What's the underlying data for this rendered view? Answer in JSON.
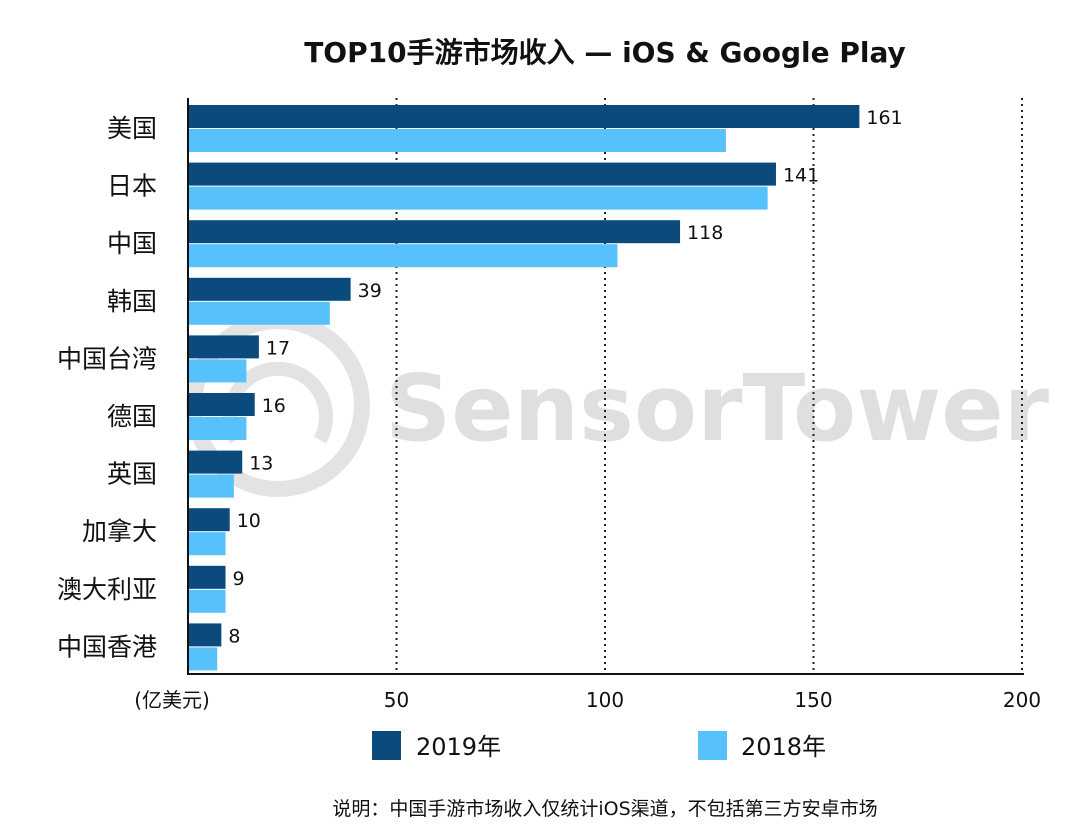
{
  "chart_data": {
    "type": "bar",
    "orientation": "horizontal",
    "title": "TOP10手游市场收入 — iOS & Google Play",
    "unit_label": "(亿美元)",
    "categories": [
      "美国",
      "日本",
      "中国",
      "韩国",
      "中国台湾",
      "德国",
      "英国",
      "加拿大",
      "澳大利亚",
      "中国香港"
    ],
    "series": [
      {
        "name": "2019年",
        "color": "#0b4a7c",
        "values": [
          161,
          141,
          118,
          39,
          17,
          16,
          13,
          10,
          9,
          8
        ],
        "show_labels": true
      },
      {
        "name": "2018年",
        "color": "#56c1fb",
        "values": [
          129,
          139,
          103,
          34,
          14,
          14,
          11,
          9,
          9,
          7
        ],
        "show_labels": false
      }
    ],
    "xlim": [
      0,
      200
    ],
    "xticks": [
      50,
      100,
      150,
      200
    ],
    "grid": "vertical-dotted",
    "legend_position": "bottom",
    "watermark": "SensorTower",
    "note": "说明：中国手游市场收入仅统计iOS渠道，不包括第三方安卓市场"
  }
}
